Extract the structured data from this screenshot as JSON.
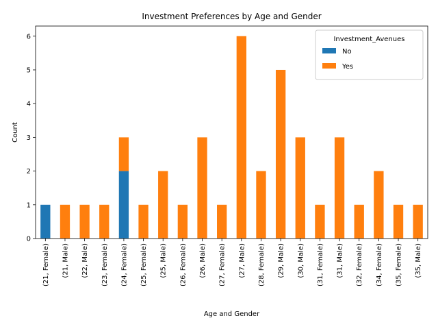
{
  "chart_data": {
    "type": "bar",
    "stacked": true,
    "title": "Investment Preferences by Age and Gender",
    "xlabel": "Age and Gender",
    "ylabel": "Count",
    "ylim": [
      0,
      6.3
    ],
    "yticks": [
      0,
      1,
      2,
      3,
      4,
      5,
      6
    ],
    "grid": false,
    "legend": {
      "title": "Investment_Avenues",
      "placement": "top-right"
    },
    "categories": [
      "(21, Female)",
      "(21, Male)",
      "(22, Male)",
      "(23, Female)",
      "(24, Female)",
      "(25, Female)",
      "(25, Male)",
      "(26, Female)",
      "(26, Male)",
      "(27, Female)",
      "(27, Male)",
      "(28, Female)",
      "(29, Male)",
      "(30, Male)",
      "(31, Female)",
      "(31, Male)",
      "(32, Female)",
      "(34, Female)",
      "(35, Female)",
      "(35, Male)"
    ],
    "series": [
      {
        "name": "No",
        "color": "#1f77b4",
        "values": [
          1,
          0,
          0,
          0,
          2,
          0,
          0,
          0,
          0,
          0,
          0,
          0,
          0,
          0,
          0,
          0,
          0,
          0,
          0,
          0
        ]
      },
      {
        "name": "Yes",
        "color": "#ff7f0e",
        "values": [
          0,
          1,
          1,
          1,
          1,
          1,
          2,
          1,
          3,
          1,
          6,
          2,
          5,
          3,
          1,
          3,
          1,
          2,
          1,
          1
        ]
      }
    ]
  }
}
